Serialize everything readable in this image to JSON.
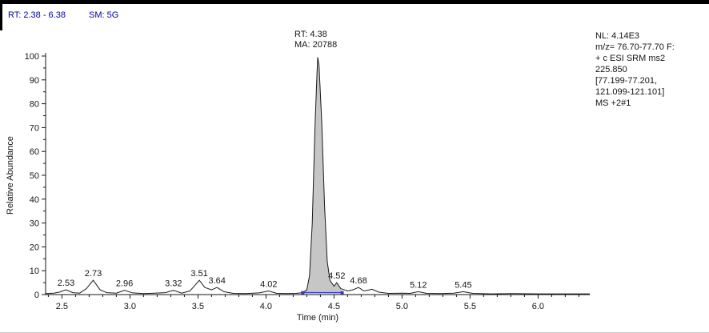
{
  "header": {
    "rt_range": "RT: 2.38 - 6.38",
    "smoothing": "SM: 5G"
  },
  "peak_annotation": {
    "rt": "RT: 4.38",
    "ma": "MA: 20788"
  },
  "info_panel": {
    "lines": [
      "NL: 4.14E3",
      "m/z= 76.70-77.70 F:",
      "+ c ESI SRM ms2",
      "225.850",
      "[77.199-77.201,",
      "121.099-121.101]",
      "MS +2#1"
    ]
  },
  "colors": {
    "header_text": "#000099",
    "trace": "#1a1a1a",
    "axis": "#141414",
    "peak_fill": "#c6c6c6",
    "integration": "#3b3bd0"
  },
  "chart_data": {
    "type": "line",
    "title": "",
    "xlabel": "Time (min)",
    "ylabel": "Relative Abundance",
    "xlim": [
      2.38,
      6.38
    ],
    "ylim": [
      0,
      100
    ],
    "x_major_ticks": [
      2.5,
      3.0,
      3.5,
      4.0,
      4.5,
      5.0,
      5.5,
      6.0
    ],
    "x_tick_labels": [
      "2.5",
      "3.0",
      "3.5",
      "4.0",
      "4.5",
      "5.0",
      "5.5",
      "6.0"
    ],
    "y_major_ticks": [
      0,
      10,
      20,
      30,
      40,
      50,
      60,
      70,
      80,
      90,
      100
    ],
    "y_tick_labels": [
      "0",
      "10",
      "20",
      "30",
      "40",
      "50",
      "60",
      "70",
      "80",
      "90",
      "100"
    ],
    "grid": false,
    "trace": [
      [
        2.38,
        0.4
      ],
      [
        2.44,
        0.6
      ],
      [
        2.48,
        1.0
      ],
      [
        2.53,
        2.0
      ],
      [
        2.58,
        0.8
      ],
      [
        2.63,
        0.6
      ],
      [
        2.68,
        2.5
      ],
      [
        2.73,
        6.0
      ],
      [
        2.78,
        2.0
      ],
      [
        2.83,
        0.8
      ],
      [
        2.9,
        0.6
      ],
      [
        2.96,
        1.8
      ],
      [
        3.02,
        0.7
      ],
      [
        3.1,
        0.4
      ],
      [
        3.18,
        0.6
      ],
      [
        3.26,
        0.8
      ],
      [
        3.32,
        1.8
      ],
      [
        3.38,
        0.6
      ],
      [
        3.44,
        1.5
      ],
      [
        3.48,
        4.0
      ],
      [
        3.51,
        6.0
      ],
      [
        3.55,
        3.0
      ],
      [
        3.6,
        2.0
      ],
      [
        3.64,
        3.0
      ],
      [
        3.69,
        1.2
      ],
      [
        3.76,
        0.5
      ],
      [
        3.85,
        0.4
      ],
      [
        3.95,
        0.7
      ],
      [
        4.02,
        1.5
      ],
      [
        4.08,
        0.5
      ],
      [
        4.15,
        0.4
      ],
      [
        4.22,
        0.5
      ],
      [
        4.27,
        0.8
      ],
      [
        4.3,
        2.0
      ],
      [
        4.32,
        8.0
      ],
      [
        4.34,
        30
      ],
      [
        4.36,
        70
      ],
      [
        4.375,
        93
      ],
      [
        4.38,
        99.5
      ],
      [
        4.39,
        96
      ],
      [
        4.41,
        72
      ],
      [
        4.43,
        38
      ],
      [
        4.45,
        14
      ],
      [
        4.47,
        6
      ],
      [
        4.5,
        3.5
      ],
      [
        4.52,
        5.0
      ],
      [
        4.55,
        2.5
      ],
      [
        4.6,
        1.5
      ],
      [
        4.64,
        2.0
      ],
      [
        4.68,
        3.0
      ],
      [
        4.72,
        1.5
      ],
      [
        4.78,
        2.2
      ],
      [
        4.83,
        1.0
      ],
      [
        4.9,
        0.5
      ],
      [
        5.0,
        0.6
      ],
      [
        5.06,
        0.5
      ],
      [
        5.12,
        1.2
      ],
      [
        5.18,
        0.5
      ],
      [
        5.28,
        0.4
      ],
      [
        5.38,
        0.6
      ],
      [
        5.45,
        1.2
      ],
      [
        5.52,
        0.5
      ],
      [
        5.65,
        0.3
      ],
      [
        5.8,
        0.4
      ],
      [
        6.0,
        0.3
      ],
      [
        6.2,
        0.3
      ],
      [
        6.38,
        0.3
      ]
    ],
    "labeled_peaks": [
      {
        "label": "2.53",
        "time": 2.53,
        "apex": 2.0
      },
      {
        "label": "2.73",
        "time": 2.73,
        "apex": 6.0
      },
      {
        "label": "2.96",
        "time": 2.96,
        "apex": 1.8
      },
      {
        "label": "3.32",
        "time": 3.32,
        "apex": 1.8
      },
      {
        "label": "3.51",
        "time": 3.51,
        "apex": 6.0
      },
      {
        "label": "3.64",
        "time": 3.64,
        "apex": 3.0
      },
      {
        "label": "4.02",
        "time": 4.02,
        "apex": 1.5
      },
      {
        "label": "4.52",
        "time": 4.52,
        "apex": 5.0
      },
      {
        "label": "4.68",
        "time": 4.68,
        "apex": 3.0
      },
      {
        "label": "5.12",
        "time": 5.12,
        "apex": 1.2
      },
      {
        "label": "5.45",
        "time": 5.45,
        "apex": 1.2
      }
    ],
    "main_peak": {
      "rt": 4.38,
      "area": 20788,
      "fill_range": [
        4.27,
        4.56
      ]
    },
    "integration_baseline": {
      "from": 4.27,
      "to": 4.56,
      "level": 0.8
    }
  }
}
